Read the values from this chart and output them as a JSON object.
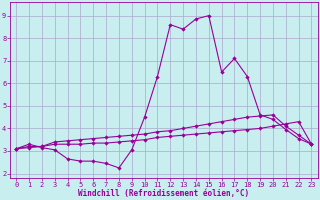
{
  "xlabel": "Windchill (Refroidissement éolien,°C)",
  "bg_color": "#c8eef0",
  "line_color": "#990099",
  "grid_color": "#aaaacc",
  "xlim": [
    -0.5,
    23.5
  ],
  "ylim": [
    1.8,
    9.6
  ],
  "xticks": [
    0,
    1,
    2,
    3,
    4,
    5,
    6,
    7,
    8,
    9,
    10,
    11,
    12,
    13,
    14,
    15,
    16,
    17,
    18,
    19,
    20,
    21,
    22,
    23
  ],
  "yticks": [
    2,
    3,
    4,
    5,
    6,
    7,
    8,
    9
  ],
  "line1_x": [
    0,
    1,
    2,
    3,
    4,
    5,
    6,
    7,
    8,
    9,
    10,
    11,
    12,
    13,
    14,
    15,
    16,
    17,
    18,
    19,
    20,
    21,
    22,
    23
  ],
  "line1_y": [
    3.1,
    3.3,
    3.15,
    3.05,
    2.65,
    2.55,
    2.55,
    2.45,
    2.25,
    3.05,
    4.5,
    6.3,
    8.6,
    8.4,
    8.85,
    9.0,
    6.5,
    7.1,
    6.3,
    4.6,
    4.4,
    3.95,
    3.55,
    3.3
  ],
  "line2_x": [
    0,
    1,
    2,
    3,
    4,
    5,
    6,
    7,
    8,
    9,
    10,
    11,
    12,
    13,
    14,
    15,
    16,
    17,
    18,
    19,
    20,
    21,
    22,
    23
  ],
  "line2_y": [
    3.1,
    3.2,
    3.2,
    3.3,
    3.3,
    3.3,
    3.35,
    3.35,
    3.4,
    3.45,
    3.5,
    3.6,
    3.65,
    3.7,
    3.75,
    3.8,
    3.85,
    3.9,
    3.95,
    4.0,
    4.1,
    4.2,
    4.3,
    3.3
  ],
  "line3_x": [
    0,
    1,
    2,
    3,
    4,
    5,
    6,
    7,
    8,
    9,
    10,
    11,
    12,
    13,
    14,
    15,
    16,
    17,
    18,
    19,
    20,
    21,
    22,
    23
  ],
  "line3_y": [
    3.1,
    3.15,
    3.2,
    3.4,
    3.45,
    3.5,
    3.55,
    3.6,
    3.65,
    3.7,
    3.75,
    3.85,
    3.9,
    4.0,
    4.1,
    4.2,
    4.3,
    4.4,
    4.5,
    4.55,
    4.6,
    4.1,
    3.7,
    3.3
  ]
}
